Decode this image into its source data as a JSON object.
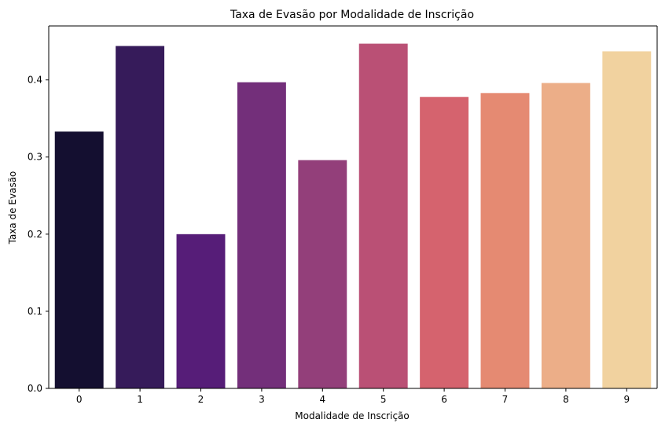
{
  "chart_data": {
    "type": "bar",
    "title": "Taxa de Evasão por Modalidade de Inscrição",
    "xlabel": "Modalidade de Inscrição",
    "ylabel": "Taxa de Evasão",
    "categories": [
      "0",
      "1",
      "2",
      "3",
      "4",
      "5",
      "6",
      "7",
      "8",
      "9"
    ],
    "values": [
      0.333,
      0.444,
      0.2,
      0.397,
      0.296,
      0.447,
      0.378,
      0.383,
      0.396,
      0.437
    ],
    "ylim": [
      0,
      0.47
    ],
    "yticks": [
      0.0,
      0.1,
      0.2,
      0.3,
      0.4
    ],
    "ytick_labels": [
      "0.0",
      "0.1",
      "0.2",
      "0.3",
      "0.4"
    ],
    "colors": [
      "#140f30",
      "#361b5a",
      "#561d78",
      "#732f7a",
      "#933f7a",
      "#ba5075",
      "#d5636e",
      "#e58a72",
      "#ecae88",
      "#f1d29f"
    ],
    "grid": false,
    "legend": "none"
  }
}
